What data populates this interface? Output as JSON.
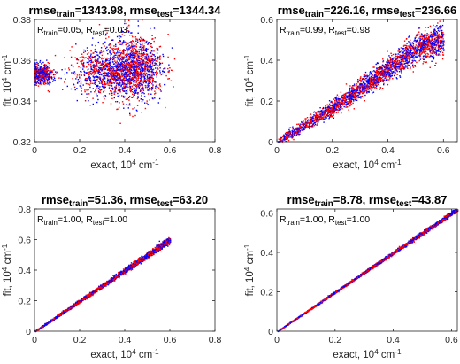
{
  "figure": {
    "panels": [
      {
        "title": {
          "p1": "rmse",
          "s1": "train",
          "p2": "=1343.98, rmse",
          "s2": "test",
          "p3": "=1344.34"
        },
        "annotation": {
          "p1": "R",
          "s1": "train",
          "p2": "=0.05, R",
          "s2": "test",
          "p3": "=0.03"
        }
      },
      {
        "title": {
          "p1": "rmse",
          "s1": "train",
          "p2": "=226.16, rmse",
          "s2": "test",
          "p3": "=236.66"
        },
        "annotation": {
          "p1": "R",
          "s1": "train",
          "p2": "=0.99, R",
          "s2": "test",
          "p3": "=0.98"
        }
      },
      {
        "title": {
          "p1": "rmse",
          "s1": "train",
          "p2": "=51.36, rmse",
          "s2": "test",
          "p3": "=63.20"
        },
        "annotation": {
          "p1": "R",
          "s1": "train",
          "p2": "=1.00, R",
          "s2": "test",
          "p3": "=1.00"
        }
      },
      {
        "title": {
          "p1": "rmse",
          "s1": "train",
          "p2": "=8.78, rmse",
          "s2": "test",
          "p3": "=43.87"
        },
        "annotation": {
          "p1": "R",
          "s1": "train",
          "p2": "=1.00, R",
          "s2": "test",
          "p3": "=1.00"
        }
      }
    ]
  },
  "chart_data": [
    {
      "type": "scatter",
      "xlabel": "exact, 10^4 cm^-1",
      "ylabel": "fit, 10^4 cm^-1",
      "xlim": [
        0,
        0.8
      ],
      "ylim": [
        0.32,
        0.38
      ],
      "xticks": [
        "0",
        "0.2",
        "0.4",
        "0.6",
        "0.8"
      ],
      "yticks": [
        "0.32",
        "0.34",
        "0.36",
        "0.38"
      ],
      "series_colors": {
        "train": "#ff0000",
        "test": "#0000ff"
      },
      "cloud": [
        {
          "x": 0.03,
          "y": 0.353,
          "sx": 0.025,
          "sy": 0.0025,
          "w": 0.18
        },
        {
          "x": 0.3,
          "y": 0.355,
          "sx": 0.07,
          "sy": 0.006,
          "w": 0.3
        },
        {
          "x": 0.44,
          "y": 0.356,
          "sx": 0.06,
          "sy": 0.008,
          "w": 0.52
        }
      ],
      "grid": false
    },
    {
      "type": "scatter",
      "xlabel": "exact, 10^4 cm^-1",
      "ylabel": "fit, 10^4 cm^-1",
      "xlim": [
        0,
        0.65
      ],
      "ylim": [
        0,
        0.6
      ],
      "xticks": [
        "0",
        "0.2",
        "0.4",
        "0.6"
      ],
      "yticks": [
        "0",
        "0.2",
        "0.4",
        "0.6"
      ],
      "series_colors": {
        "train": "#ff0000",
        "test": "#0000ff"
      },
      "trend": {
        "x_range": [
          0,
          0.6
        ],
        "y_at_x": [
          [
            0,
            0
          ],
          [
            0.2,
            0.17
          ],
          [
            0.4,
            0.36
          ],
          [
            0.5,
            0.46
          ],
          [
            0.6,
            0.5
          ]
        ],
        "spread": 0.03
      },
      "grid": false
    },
    {
      "type": "scatter",
      "xlabel": "exact, 10^4 cm^-1",
      "ylabel": "fit, 10^4 cm^-1",
      "xlim": [
        0,
        0.8
      ],
      "ylim": [
        0,
        0.8
      ],
      "xticks": [
        "0",
        "0.2",
        "0.4",
        "0.6",
        "0.8"
      ],
      "yticks": [
        "0",
        "0.2",
        "0.4",
        "0.6",
        "0.8"
      ],
      "series_colors": {
        "train": "#ff0000",
        "test": "#0000ff"
      },
      "trend": {
        "x_range": [
          0,
          0.6
        ],
        "y_at_x": [
          [
            0,
            0
          ],
          [
            0.6,
            0.6
          ]
        ],
        "spread": 0.008
      },
      "grid": false
    },
    {
      "type": "scatter",
      "xlabel": "exact, 10^4 cm^-1",
      "ylabel": "fit, 10^4 cm^-1",
      "xlim": [
        0,
        0.62
      ],
      "ylim": [
        0,
        0.62
      ],
      "xticks": [
        "0",
        "0.2",
        "0.4",
        "0.6"
      ],
      "yticks": [
        "0",
        "0.2",
        "0.4",
        "0.6"
      ],
      "series_colors": {
        "train": "#ff0000",
        "test": "#0000ff"
      },
      "trend": {
        "x_range": [
          0,
          0.62
        ],
        "y_at_x": [
          [
            0,
            0
          ],
          [
            0.62,
            0.62
          ]
        ],
        "spread": 0.004
      },
      "grid": false
    }
  ]
}
